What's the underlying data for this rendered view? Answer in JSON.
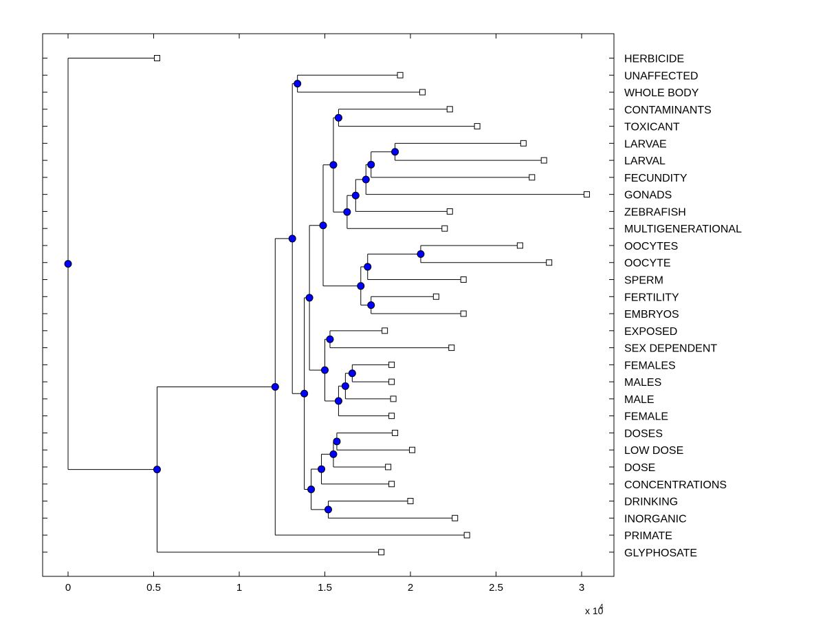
{
  "chart_data": {
    "type": "dendrogram",
    "title": "",
    "xlabel": "",
    "ylabel": "",
    "x_multiplier_label": "x 10",
    "x_multiplier_exponent": "4",
    "xlim": [
      -0.15,
      3.18
    ],
    "x_ticks": [
      0,
      0.5,
      1,
      1.5,
      2,
      2.5,
      3
    ],
    "x_tick_labels": [
      "0",
      "0.5",
      "1",
      "1.5",
      "2",
      "2.5",
      "3"
    ],
    "grid": false,
    "node_color": "#0000ff",
    "leaves": [
      {
        "label": "HERBICIDE",
        "x": 0.52
      },
      {
        "label": "UNAFFECTED",
        "x": 1.94
      },
      {
        "label": "WHOLE BODY",
        "x": 2.07
      },
      {
        "label": "CONTAMINANTS",
        "x": 2.23
      },
      {
        "label": "TOXICANT",
        "x": 2.39
      },
      {
        "label": "LARVAE",
        "x": 2.66
      },
      {
        "label": "LARVAL",
        "x": 2.78
      },
      {
        "label": "FECUNDITY",
        "x": 2.71
      },
      {
        "label": "GONADS",
        "x": 3.03
      },
      {
        "label": "ZEBRAFISH",
        "x": 2.23
      },
      {
        "label": "MULTIGENERATIONAL",
        "x": 2.2
      },
      {
        "label": "OOCYTES",
        "x": 2.64
      },
      {
        "label": "OOCYTE",
        "x": 2.81
      },
      {
        "label": "SPERM",
        "x": 2.31
      },
      {
        "label": "FERTILITY",
        "x": 2.15
      },
      {
        "label": "EMBRYOS",
        "x": 2.31
      },
      {
        "label": "EXPOSED",
        "x": 1.85
      },
      {
        "label": "SEX DEPENDENT",
        "x": 2.24
      },
      {
        "label": "FEMALES",
        "x": 1.89
      },
      {
        "label": "MALES",
        "x": 1.89
      },
      {
        "label": "MALE",
        "x": 1.9
      },
      {
        "label": "FEMALE",
        "x": 1.89
      },
      {
        "label": "DOSES",
        "x": 1.91
      },
      {
        "label": "LOW DOSE",
        "x": 2.01
      },
      {
        "label": "DOSE",
        "x": 1.87
      },
      {
        "label": "CONCENTRATIONS",
        "x": 1.89
      },
      {
        "label": "DRINKING",
        "x": 2.0
      },
      {
        "label": "INORGANIC",
        "x": 2.26
      },
      {
        "label": "PRIMATE",
        "x": 2.33
      },
      {
        "label": "GLYPHOSATE",
        "x": 1.83
      }
    ],
    "nodes": [
      {
        "id": "n1",
        "x": 1.34,
        "children": [
          1,
          2
        ]
      },
      {
        "id": "n2",
        "x": 1.58,
        "children": [
          3,
          4
        ]
      },
      {
        "id": "n3",
        "x": 1.91,
        "children": [
          5,
          6
        ]
      },
      {
        "id": "n4",
        "x": 1.77,
        "children": [
          "n3",
          7
        ]
      },
      {
        "id": "n5",
        "x": 1.74,
        "children": [
          "n4",
          8
        ]
      },
      {
        "id": "n6",
        "x": 1.68,
        "children": [
          "n5",
          9
        ]
      },
      {
        "id": "n7",
        "x": 1.63,
        "children": [
          "n6",
          10
        ]
      },
      {
        "id": "n8",
        "x": 1.55,
        "children": [
          "n2",
          "n7"
        ]
      },
      {
        "id": "n9",
        "x": 2.06,
        "children": [
          11,
          12
        ]
      },
      {
        "id": "n10",
        "x": 1.75,
        "children": [
          "n9",
          13
        ]
      },
      {
        "id": "n11",
        "x": 1.77,
        "children": [
          14,
          15
        ]
      },
      {
        "id": "n12",
        "x": 1.71,
        "children": [
          "n10",
          "n11"
        ]
      },
      {
        "id": "n13",
        "x": 1.49,
        "children": [
          "n8",
          "n12"
        ]
      },
      {
        "id": "n14",
        "x": 1.53,
        "children": [
          16,
          17
        ]
      },
      {
        "id": "n15",
        "x": 1.66,
        "children": [
          18,
          19
        ]
      },
      {
        "id": "n16",
        "x": 1.62,
        "children": [
          "n15",
          20
        ]
      },
      {
        "id": "n17",
        "x": 1.58,
        "children": [
          "n16",
          21
        ]
      },
      {
        "id": "n18",
        "x": 1.5,
        "children": [
          "n14",
          "n17"
        ]
      },
      {
        "id": "n19",
        "x": 1.41,
        "children": [
          "n13",
          "n18"
        ]
      },
      {
        "id": "n20",
        "x": 1.57,
        "children": [
          22,
          23
        ]
      },
      {
        "id": "n21",
        "x": 1.55,
        "children": [
          "n20",
          24
        ]
      },
      {
        "id": "n22",
        "x": 1.48,
        "children": [
          "n21",
          25
        ]
      },
      {
        "id": "n23",
        "x": 1.52,
        "children": [
          26,
          27
        ]
      },
      {
        "id": "n24",
        "x": 1.42,
        "children": [
          "n22",
          "n23"
        ]
      },
      {
        "id": "n25",
        "x": 1.38,
        "children": [
          "n19",
          "n24"
        ]
      },
      {
        "id": "n26",
        "x": 1.31,
        "children": [
          "n1",
          "n25"
        ]
      },
      {
        "id": "n27",
        "x": 1.21,
        "children": [
          "n26",
          28
        ]
      },
      {
        "id": "n28",
        "x": 0.52,
        "children": [
          "n27",
          29
        ]
      },
      {
        "id": "n29",
        "x": 0.0,
        "children": [
          0,
          "n28"
        ]
      }
    ]
  }
}
